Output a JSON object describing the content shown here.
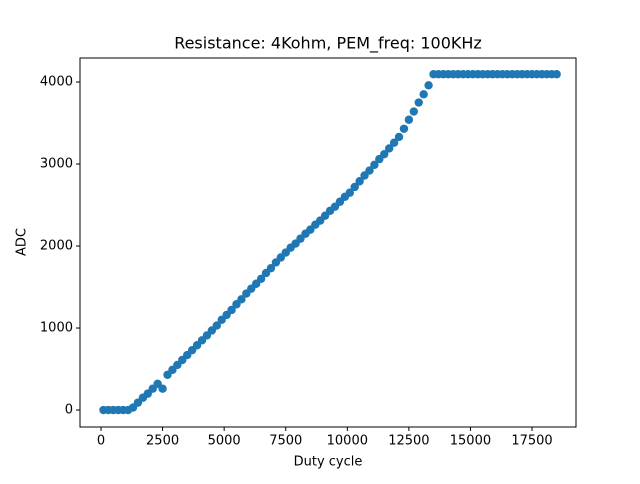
{
  "chart_data": {
    "type": "scatter",
    "title": "Resistance: 4Kohm, PEM_freq: 100KHz",
    "x_label": "Duty cycle",
    "y_label": "ADC",
    "color": "#1f77b4",
    "x": [
      100,
      300,
      500,
      700,
      900,
      1100,
      1300,
      1500,
      1700,
      1900,
      2100,
      2300,
      2500,
      2700,
      2900,
      3100,
      3300,
      3500,
      3700,
      3900,
      4100,
      4300,
      4500,
      4700,
      4900,
      5100,
      5300,
      5500,
      5700,
      5900,
      6100,
      6300,
      6500,
      6700,
      6900,
      7100,
      7300,
      7500,
      7700,
      7900,
      8100,
      8300,
      8500,
      8700,
      8900,
      9100,
      9300,
      9500,
      9700,
      9900,
      10100,
      10300,
      10500,
      10700,
      10900,
      11100,
      11300,
      11500,
      11700,
      11900,
      12100,
      12300,
      12500,
      12700,
      12900,
      13100,
      13300,
      13500,
      13700,
      13900,
      14100,
      14300,
      14500,
      14700,
      14900,
      15100,
      15300,
      15500,
      15700,
      15900,
      16100,
      16300,
      16500,
      16700,
      16900,
      17100,
      17300,
      17500,
      17700,
      17900,
      18100,
      18300,
      18500
    ],
    "values": [
      0,
      0,
      0,
      0,
      0,
      0,
      30,
      90,
      150,
      200,
      260,
      320,
      260,
      430,
      490,
      550,
      610,
      670,
      730,
      790,
      850,
      910,
      970,
      1030,
      1100,
      1160,
      1220,
      1290,
      1350,
      1420,
      1480,
      1540,
      1600,
      1670,
      1730,
      1800,
      1860,
      1920,
      1980,
      2030,
      2090,
      2150,
      2200,
      2260,
      2310,
      2370,
      2430,
      2480,
      2540,
      2600,
      2650,
      2720,
      2790,
      2860,
      2920,
      2990,
      3060,
      3120,
      3190,
      3260,
      3330,
      3430,
      3540,
      3640,
      3750,
      3850,
      3960,
      4095,
      4095,
      4095,
      4095,
      4095,
      4095,
      4095,
      4095,
      4095,
      4095,
      4095,
      4095,
      4095,
      4095,
      4095,
      4095,
      4095,
      4095,
      4095,
      4095,
      4095,
      4095,
      4095,
      4095,
      4095,
      4095
    ],
    "xlim": [
      -853,
      19285
    ],
    "ylim": [
      -207,
      4293
    ],
    "xticks": [
      0,
      2500,
      5000,
      7500,
      10000,
      12500,
      15000,
      17500
    ],
    "yticks": [
      0,
      1000,
      2000,
      3000,
      4000
    ]
  }
}
